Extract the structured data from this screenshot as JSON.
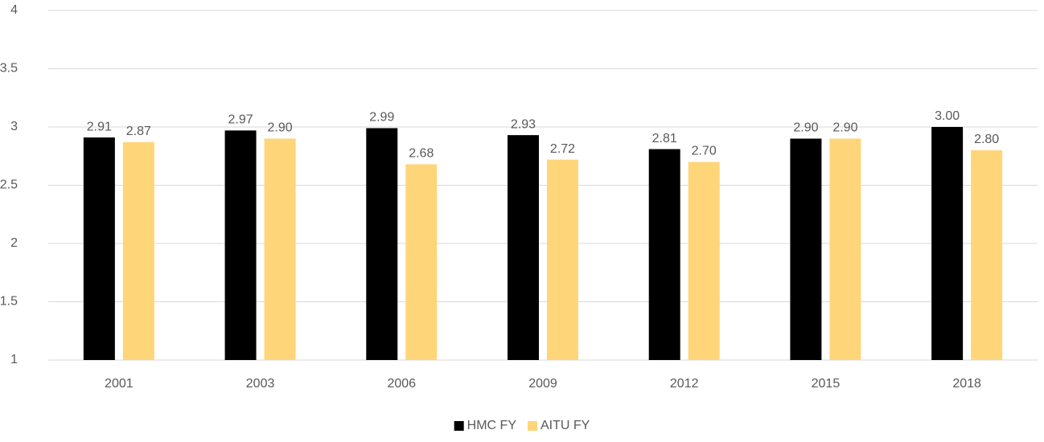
{
  "chart_data": {
    "type": "bar",
    "categories": [
      "2001",
      "2003",
      "2006",
      "2009",
      "2012",
      "2015",
      "2018"
    ],
    "series": [
      {
        "name": "HMC FY",
        "color": "#000000",
        "values": [
          2.91,
          2.97,
          2.99,
          2.93,
          2.81,
          2.9,
          3.0
        ],
        "value_labels": [
          "2.91",
          "2.97",
          "2.99",
          "2.93",
          "2.81",
          "2.90",
          "3.00"
        ]
      },
      {
        "name": "AITU FY",
        "color": "#ffd579",
        "values": [
          2.87,
          2.9,
          2.68,
          2.72,
          2.7,
          2.9,
          2.8
        ],
        "value_labels": [
          "2.87",
          "2.90",
          "2.68",
          "2.72",
          "2.70",
          "2.90",
          "2.80"
        ]
      }
    ],
    "ylim": [
      1,
      4
    ],
    "yticks": [
      1,
      1.5,
      2,
      2.5,
      3,
      3.5,
      4
    ],
    "grid": true,
    "legend": "bottom"
  }
}
